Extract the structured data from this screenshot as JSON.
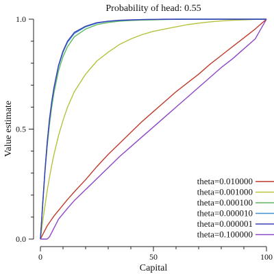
{
  "chart_data": {
    "type": "line",
    "title": "Probability of head: 0.55",
    "xlabel": "Capital",
    "ylabel": "Value estimate",
    "xlim": [
      0,
      100
    ],
    "ylim": [
      0,
      1
    ],
    "x_ticks": [
      0,
      50,
      100
    ],
    "x_tick_labels": [
      "0",
      "50",
      "100"
    ],
    "y_ticks": [
      0,
      0.5,
      1
    ],
    "y_tick_labels": [
      "0.0",
      "0.5",
      "1.0"
    ],
    "x_minor_step": 10,
    "y_minor_step": 0.1,
    "grid": false,
    "legend_position": "bottom-right",
    "x": [
      0,
      1,
      2,
      3,
      4,
      5,
      6,
      8,
      10,
      12,
      15,
      20,
      25,
      30,
      35,
      40,
      45,
      50,
      55,
      60,
      65,
      70,
      75,
      80,
      85,
      90,
      95,
      100
    ],
    "series": [
      {
        "name": "theta=0.010000",
        "color": "#c0392b",
        "values": [
          0,
          0.02,
          0.04,
          0.06,
          0.075,
          0.09,
          0.105,
          0.13,
          0.155,
          0.18,
          0.215,
          0.27,
          0.33,
          0.385,
          0.435,
          0.485,
          0.535,
          0.58,
          0.625,
          0.67,
          0.71,
          0.75,
          0.795,
          0.835,
          0.875,
          0.915,
          0.955,
          1.0
        ]
      },
      {
        "name": "theta=0.001000",
        "color": "#b5c23a",
        "values": [
          0,
          0.08,
          0.15,
          0.22,
          0.28,
          0.335,
          0.385,
          0.47,
          0.54,
          0.6,
          0.67,
          0.75,
          0.81,
          0.85,
          0.885,
          0.91,
          0.93,
          0.945,
          0.955,
          0.965,
          0.975,
          0.982,
          0.988,
          0.992,
          0.995,
          0.997,
          0.999,
          1.0
        ]
      },
      {
        "name": "theta=0.000100",
        "color": "#5cb85c",
        "values": [
          0,
          0.15,
          0.3,
          0.42,
          0.52,
          0.6,
          0.665,
          0.765,
          0.83,
          0.875,
          0.92,
          0.955,
          0.975,
          0.985,
          0.991,
          0.994,
          0.996,
          0.997,
          0.998,
          0.999,
          0.999,
          1.0,
          1.0,
          1.0,
          1.0,
          1.0,
          1.0,
          1.0
        ]
      },
      {
        "name": "theta=0.000010",
        "color": "#3f8fd0",
        "values": [
          0,
          0.16,
          0.31,
          0.44,
          0.54,
          0.62,
          0.685,
          0.785,
          0.85,
          0.895,
          0.935,
          0.965,
          0.982,
          0.99,
          0.994,
          0.996,
          0.998,
          0.999,
          0.999,
          1.0,
          1.0,
          1.0,
          1.0,
          1.0,
          1.0,
          1.0,
          1.0,
          1.0
        ]
      },
      {
        "name": "theta=0.000001",
        "color": "#3a3fb8",
        "values": [
          0,
          0.16,
          0.31,
          0.44,
          0.545,
          0.625,
          0.69,
          0.79,
          0.855,
          0.9,
          0.94,
          0.968,
          0.984,
          0.991,
          0.995,
          0.997,
          0.998,
          0.999,
          1.0,
          1.0,
          1.0,
          1.0,
          1.0,
          1.0,
          1.0,
          1.0,
          1.0,
          1.0
        ]
      },
      {
        "name": "theta=0.100000",
        "color": "#8e44c8",
        "values": [
          0,
          0,
          0,
          0,
          0.01,
          0.03,
          0.05,
          0.09,
          0.115,
          0.14,
          0.175,
          0.225,
          0.275,
          0.325,
          0.375,
          0.42,
          0.465,
          0.51,
          0.555,
          0.6,
          0.645,
          0.69,
          0.735,
          0.78,
          0.82,
          0.865,
          0.91,
          1.0
        ]
      }
    ]
  }
}
